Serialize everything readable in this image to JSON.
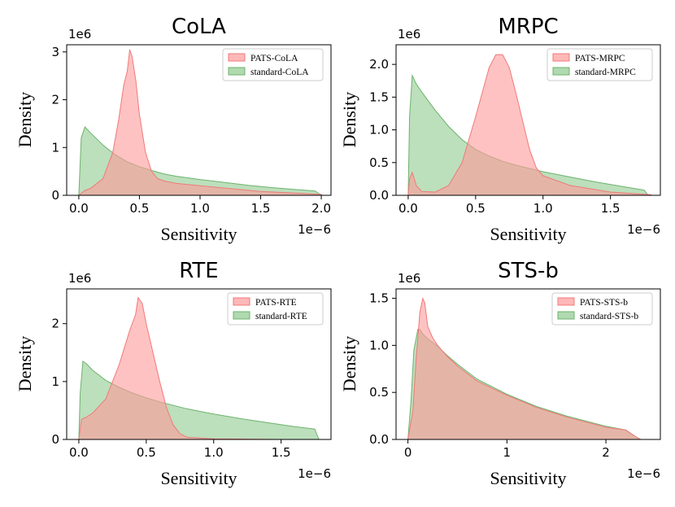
{
  "colors": {
    "pats_fill": "#ff9a9a",
    "pats_stroke": "#f07a7a",
    "standard_fill": "#8fc98f",
    "standard_stroke": "#6db36d",
    "axis": "#000000",
    "legend_border": "#cccccc"
  },
  "chart_data": [
    {
      "type": "area",
      "title": "CoLA",
      "xlabel": "Sensitivity",
      "ylabel": "Density",
      "x_scale_label": "1e−6",
      "y_scale_label": "1e6",
      "xlim": [
        -0.1,
        2.08
      ],
      "ylim": [
        0,
        3.15
      ],
      "xticks": [
        0.0,
        0.5,
        1.0,
        1.5,
        2.0
      ],
      "xtick_labels": [
        "0.0",
        "0.5",
        "1.0",
        "1.5",
        "2.0"
      ],
      "yticks": [
        0,
        1,
        2,
        3
      ],
      "ytick_labels": [
        "0",
        "1",
        "2",
        "3"
      ],
      "legend_position": "top-right",
      "series": [
        {
          "name": "PATS-CoLA",
          "color": "pats",
          "x": [
            0.0,
            0.05,
            0.1,
            0.2,
            0.28,
            0.33,
            0.37,
            0.4,
            0.42,
            0.44,
            0.47,
            0.5,
            0.55,
            0.6,
            0.65,
            0.7,
            0.8,
            1.0,
            1.5,
            2.0
          ],
          "y": [
            0.0,
            0.1,
            0.15,
            0.35,
            0.9,
            1.6,
            2.3,
            2.6,
            3.05,
            2.9,
            2.4,
            1.7,
            0.9,
            0.5,
            0.35,
            0.3,
            0.25,
            0.2,
            0.08,
            0.02
          ]
        },
        {
          "name": "standard-CoLA",
          "color": "standard",
          "x": [
            0.0,
            0.02,
            0.05,
            0.1,
            0.2,
            0.3,
            0.4,
            0.5,
            0.6,
            0.7,
            0.8,
            1.0,
            1.2,
            1.4,
            1.6,
            1.8,
            1.95,
            2.0
          ],
          "y": [
            0.0,
            1.2,
            1.43,
            1.3,
            1.05,
            0.85,
            0.7,
            0.6,
            0.52,
            0.45,
            0.4,
            0.33,
            0.27,
            0.21,
            0.16,
            0.12,
            0.09,
            0.0
          ]
        }
      ]
    },
    {
      "type": "area",
      "title": "MRPC",
      "xlabel": "Sensitivity",
      "ylabel": "Density",
      "x_scale_label": "1e−6",
      "y_scale_label": "1e6",
      "xlim": [
        -0.09,
        1.87
      ],
      "ylim": [
        0,
        2.3
      ],
      "xticks": [
        0.0,
        0.5,
        1.0,
        1.5
      ],
      "xtick_labels": [
        "0.0",
        "0.5",
        "1.0",
        "1.5"
      ],
      "yticks": [
        0.0,
        0.5,
        1.0,
        1.5,
        2.0
      ],
      "ytick_labels": [
        "0.0",
        "0.5",
        "1.0",
        "1.5",
        "2.0"
      ],
      "legend_position": "top-right",
      "series": [
        {
          "name": "PATS-MRPC",
          "color": "pats",
          "x": [
            0.0,
            0.01,
            0.03,
            0.06,
            0.1,
            0.2,
            0.3,
            0.4,
            0.5,
            0.6,
            0.65,
            0.7,
            0.75,
            0.8,
            0.9,
            0.95,
            1.0,
            1.2,
            1.5,
            1.8
          ],
          "y": [
            0.0,
            0.25,
            0.35,
            0.15,
            0.06,
            0.05,
            0.15,
            0.5,
            1.2,
            1.95,
            2.15,
            2.15,
            1.95,
            1.55,
            0.7,
            0.42,
            0.3,
            0.15,
            0.05,
            0.01
          ]
        },
        {
          "name": "standard-MRPC",
          "color": "standard",
          "x": [
            0.0,
            0.01,
            0.03,
            0.06,
            0.1,
            0.2,
            0.3,
            0.4,
            0.5,
            0.6,
            0.7,
            0.8,
            1.0,
            1.2,
            1.4,
            1.6,
            1.75,
            1.78
          ],
          "y": [
            0.0,
            1.2,
            1.83,
            1.7,
            1.58,
            1.3,
            1.05,
            0.85,
            0.7,
            0.6,
            0.52,
            0.46,
            0.36,
            0.28,
            0.2,
            0.13,
            0.08,
            0.0
          ]
        }
      ]
    },
    {
      "type": "area",
      "title": "RTE",
      "xlabel": "Sensitivity",
      "ylabel": "Density",
      "x_scale_label": "1e−6",
      "y_scale_label": "1e6",
      "xlim": [
        -0.09,
        1.87
      ],
      "ylim": [
        0,
        2.6
      ],
      "xticks": [
        0.0,
        0.5,
        1.0,
        1.5
      ],
      "xtick_labels": [
        "0.0",
        "0.5",
        "1.0",
        "1.5"
      ],
      "yticks": [
        0,
        1,
        2
      ],
      "ytick_labels": [
        "0",
        "1",
        "2"
      ],
      "legend_position": "top-right",
      "series": [
        {
          "name": "PATS-RTE",
          "color": "pats",
          "x": [
            0.0,
            0.02,
            0.05,
            0.1,
            0.2,
            0.3,
            0.38,
            0.42,
            0.44,
            0.47,
            0.5,
            0.55,
            0.6,
            0.65,
            0.7,
            0.75,
            0.8,
            1.0,
            1.5,
            1.8
          ],
          "y": [
            0.0,
            0.35,
            0.38,
            0.45,
            0.7,
            1.3,
            1.9,
            2.15,
            2.45,
            2.35,
            2.0,
            1.5,
            1.0,
            0.55,
            0.25,
            0.1,
            0.04,
            0.01,
            0.0,
            0.0
          ]
        },
        {
          "name": "standard-RTE",
          "color": "standard",
          "x": [
            0.0,
            0.01,
            0.03,
            0.06,
            0.1,
            0.2,
            0.3,
            0.4,
            0.5,
            0.6,
            0.8,
            1.0,
            1.2,
            1.4,
            1.6,
            1.75,
            1.78
          ],
          "y": [
            0.0,
            0.8,
            1.35,
            1.3,
            1.2,
            1.02,
            0.9,
            0.8,
            0.72,
            0.65,
            0.53,
            0.44,
            0.36,
            0.29,
            0.22,
            0.18,
            0.0
          ]
        }
      ]
    },
    {
      "type": "area",
      "title": "STS-b",
      "xlabel": "Sensitivity",
      "ylabel": "Density",
      "x_scale_label": "1e−6",
      "y_scale_label": "1e6",
      "xlim": [
        -0.12,
        2.55
      ],
      "ylim": [
        0,
        1.6
      ],
      "xticks": [
        0,
        1,
        2
      ],
      "xtick_labels": [
        "0",
        "1",
        "2"
      ],
      "yticks": [
        0.0,
        0.5,
        1.0,
        1.5
      ],
      "ytick_labels": [
        "0.0",
        "0.5",
        "1.0",
        "1.5"
      ],
      "legend_position": "top-right",
      "series": [
        {
          "name": "PATS-STS-b",
          "color": "pats",
          "x": [
            0.0,
            0.05,
            0.08,
            0.12,
            0.15,
            0.17,
            0.2,
            0.25,
            0.3,
            0.4,
            0.5,
            0.7,
            1.0,
            1.3,
            1.6,
            2.0,
            2.2,
            2.3,
            2.35
          ],
          "y": [
            0.0,
            0.3,
            0.8,
            1.35,
            1.5,
            1.45,
            1.2,
            1.08,
            1.0,
            0.88,
            0.78,
            0.62,
            0.47,
            0.34,
            0.24,
            0.13,
            0.1,
            0.03,
            0.0
          ]
        },
        {
          "name": "standard-STS-b",
          "color": "standard",
          "x": [
            0.0,
            0.03,
            0.06,
            0.1,
            0.12,
            0.15,
            0.2,
            0.3,
            0.4,
            0.5,
            0.7,
            1.0,
            1.3,
            1.6,
            2.0,
            2.2,
            2.3,
            2.35
          ],
          "y": [
            0.0,
            0.4,
            0.95,
            1.17,
            1.17,
            1.12,
            1.07,
            0.99,
            0.89,
            0.8,
            0.64,
            0.48,
            0.35,
            0.25,
            0.14,
            0.1,
            0.03,
            0.0
          ]
        }
      ]
    }
  ]
}
